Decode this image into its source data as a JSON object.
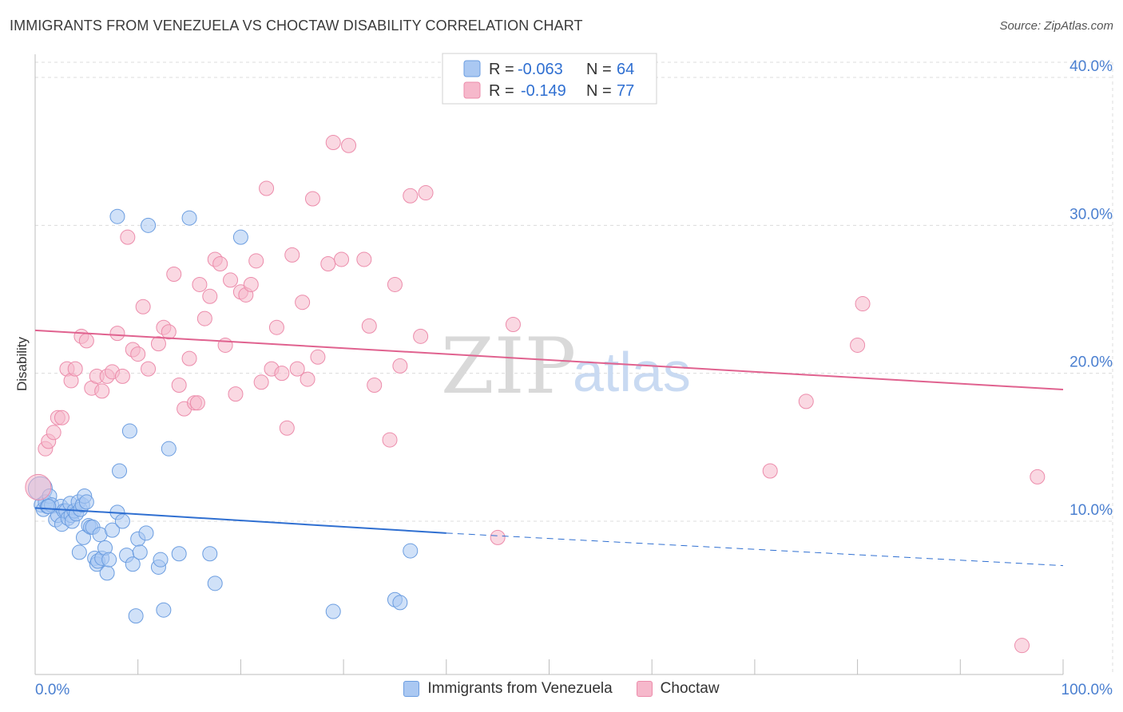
{
  "title": "IMMIGRANTS FROM VENEZUELA VS CHOCTAW DISABILITY CORRELATION CHART",
  "source": "Source: ZipAtlas.com",
  "watermark": {
    "zip": "ZIP",
    "atlas": "atlas"
  },
  "colors": {
    "series1_fill": "#aac8f2",
    "series1_stroke": "#6b9de0",
    "series1_line": "#2f6fd1",
    "series2_fill": "#f6b8cb",
    "series2_stroke": "#ec8cab",
    "series2_line": "#e0628f",
    "tick": "#4a7fd0",
    "grid": "#dcdcdc"
  },
  "legend": {
    "r_label": "R =",
    "n_label": "N =",
    "s1_r": "-0.063",
    "s1_n": "64",
    "s2_r": "-0.149",
    "s2_n": "77"
  },
  "chart_data": {
    "type": "scatter",
    "title": "IMMIGRANTS FROM VENEZUELA VS CHOCTAW DISABILITY CORRELATION CHART",
    "xlabel": "",
    "ylabel": "Disability",
    "xlim": [
      0,
      100
    ],
    "ylim": [
      0,
      42
    ],
    "x_tick_labels": [
      "0.0%",
      "100.0%"
    ],
    "y_ticks": [
      10,
      20,
      30,
      40
    ],
    "y_tick_labels": [
      "10.0%",
      "20.0%",
      "30.0%",
      "40.0%"
    ],
    "grid": true,
    "legend_position": "top-center",
    "series": [
      {
        "name": "Immigrants from Venezuela",
        "r": -0.063,
        "n": 64,
        "trend": {
          "x0": 0,
          "y0": 10.9,
          "x1": 40,
          "y1": 9.2,
          "dashed_to_x": 100,
          "dashed_to_y": 7.0
        },
        "points": [
          [
            0.5,
            12.2
          ],
          [
            0.6,
            11.1
          ],
          [
            0.8,
            10.8
          ],
          [
            1.0,
            11.3
          ],
          [
            1.2,
            11.0
          ],
          [
            1.4,
            11.7
          ],
          [
            1.6,
            11.1
          ],
          [
            2.0,
            10.1
          ],
          [
            2.2,
            10.4
          ],
          [
            2.5,
            11.0
          ],
          [
            2.6,
            9.8
          ],
          [
            2.8,
            10.7
          ],
          [
            3.0,
            10.7
          ],
          [
            3.2,
            10.2
          ],
          [
            3.4,
            11.2
          ],
          [
            3.5,
            10.4
          ],
          [
            3.6,
            10.0
          ],
          [
            3.8,
            10.7
          ],
          [
            4.0,
            10.5
          ],
          [
            4.2,
            11.3
          ],
          [
            4.3,
            7.9
          ],
          [
            4.4,
            10.8
          ],
          [
            4.6,
            11.1
          ],
          [
            4.7,
            8.9
          ],
          [
            4.8,
            11.7
          ],
          [
            5.0,
            11.3
          ],
          [
            5.2,
            9.7
          ],
          [
            5.4,
            9.6
          ],
          [
            5.6,
            9.6
          ],
          [
            5.8,
            7.5
          ],
          [
            6.0,
            7.1
          ],
          [
            6.1,
            7.3
          ],
          [
            6.3,
            9.1
          ],
          [
            6.5,
            7.5
          ],
          [
            6.8,
            8.2
          ],
          [
            7.0,
            6.5
          ],
          [
            7.2,
            7.4
          ],
          [
            7.5,
            9.4
          ],
          [
            8.0,
            10.6
          ],
          [
            8.2,
            13.4
          ],
          [
            8.5,
            10.0
          ],
          [
            8.9,
            7.7
          ],
          [
            9.2,
            16.1
          ],
          [
            9.5,
            7.1
          ],
          [
            9.8,
            3.6
          ],
          [
            10.0,
            8.8
          ],
          [
            10.2,
            7.9
          ],
          [
            10.8,
            9.2
          ],
          [
            12.0,
            6.9
          ],
          [
            12.2,
            7.4
          ],
          [
            12.5,
            4.0
          ],
          [
            13.0,
            14.9
          ],
          [
            14.0,
            7.8
          ],
          [
            17.0,
            7.8
          ],
          [
            17.5,
            5.8
          ],
          [
            20.0,
            29.2
          ],
          [
            11.0,
            30.0
          ],
          [
            15.0,
            30.5
          ],
          [
            8.0,
            30.6
          ],
          [
            29.0,
            3.9
          ],
          [
            35.0,
            4.7
          ],
          [
            35.5,
            4.5
          ],
          [
            36.5,
            8.0
          ],
          [
            1.3,
            11.0
          ]
        ]
      },
      {
        "name": "Choctaw",
        "r": -0.149,
        "n": 77,
        "trend": {
          "x0": 0,
          "y0": 22.9,
          "x1": 100,
          "y1": 18.9
        },
        "points": [
          [
            0.3,
            12.3
          ],
          [
            1.0,
            14.9
          ],
          [
            1.3,
            15.4
          ],
          [
            1.8,
            16.0
          ],
          [
            2.2,
            17.0
          ],
          [
            2.6,
            17.0
          ],
          [
            3.1,
            20.3
          ],
          [
            3.5,
            19.5
          ],
          [
            3.9,
            20.3
          ],
          [
            4.5,
            22.5
          ],
          [
            5.0,
            22.2
          ],
          [
            5.5,
            19.0
          ],
          [
            6.0,
            19.8
          ],
          [
            6.5,
            18.8
          ],
          [
            7.0,
            19.8
          ],
          [
            7.5,
            20.1
          ],
          [
            8.0,
            22.7
          ],
          [
            8.5,
            19.8
          ],
          [
            9.0,
            29.2
          ],
          [
            9.5,
            21.6
          ],
          [
            10.0,
            21.3
          ],
          [
            10.5,
            24.5
          ],
          [
            11.0,
            20.3
          ],
          [
            12.0,
            22.0
          ],
          [
            12.5,
            23.1
          ],
          [
            13.0,
            22.8
          ],
          [
            13.5,
            26.7
          ],
          [
            14.0,
            19.2
          ],
          [
            14.5,
            17.6
          ],
          [
            15.0,
            21.0
          ],
          [
            15.5,
            18.0
          ],
          [
            16.0,
            26.0
          ],
          [
            16.5,
            23.7
          ],
          [
            17.0,
            25.2
          ],
          [
            17.5,
            27.7
          ],
          [
            18.0,
            27.4
          ],
          [
            18.5,
            21.9
          ],
          [
            19.0,
            26.3
          ],
          [
            19.5,
            18.6
          ],
          [
            20.0,
            25.5
          ],
          [
            20.5,
            25.3
          ],
          [
            21.0,
            26.0
          ],
          [
            21.5,
            27.6
          ],
          [
            22.0,
            19.4
          ],
          [
            22.5,
            32.5
          ],
          [
            23.0,
            20.3
          ],
          [
            23.5,
            23.1
          ],
          [
            24.0,
            20.0
          ],
          [
            24.5,
            16.3
          ],
          [
            25.0,
            28.0
          ],
          [
            25.5,
            20.3
          ],
          [
            26.0,
            24.8
          ],
          [
            26.5,
            19.6
          ],
          [
            27.0,
            31.8
          ],
          [
            27.5,
            21.1
          ],
          [
            28.5,
            27.4
          ],
          [
            29.0,
            35.6
          ],
          [
            29.8,
            27.7
          ],
          [
            30.5,
            35.4
          ],
          [
            32.0,
            27.7
          ],
          [
            32.5,
            23.2
          ],
          [
            33.0,
            19.2
          ],
          [
            34.5,
            15.5
          ],
          [
            35.0,
            26.0
          ],
          [
            35.5,
            20.5
          ],
          [
            36.5,
            32.0
          ],
          [
            37.5,
            22.5
          ],
          [
            38.0,
            32.2
          ],
          [
            45.0,
            8.9
          ],
          [
            46.5,
            23.3
          ],
          [
            71.5,
            13.4
          ],
          [
            75.0,
            18.1
          ],
          [
            80.0,
            21.9
          ],
          [
            80.5,
            24.7
          ],
          [
            96.0,
            1.6
          ],
          [
            97.5,
            13.0
          ],
          [
            15.8,
            18.0
          ]
        ]
      }
    ]
  },
  "bottom_legend": [
    "Immigrants from Venezuela",
    "Choctaw"
  ]
}
